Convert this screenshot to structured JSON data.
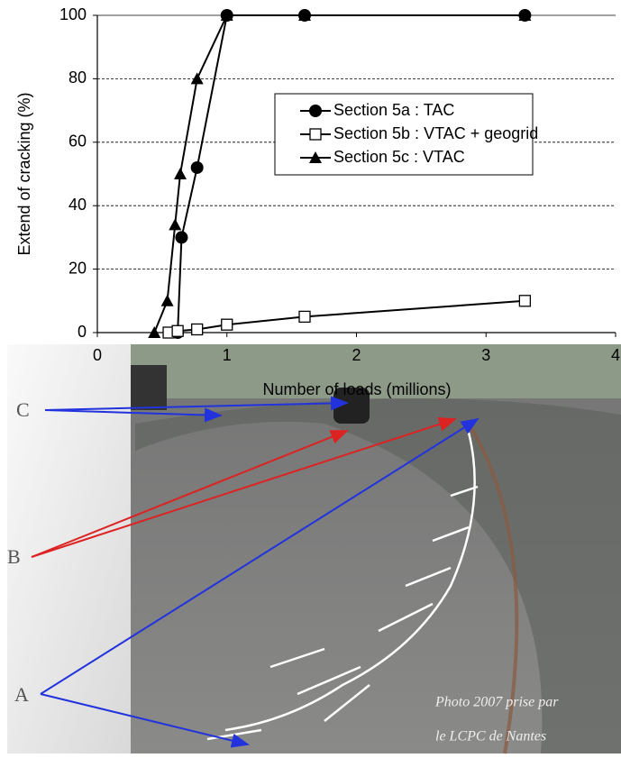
{
  "chart_data": {
    "type": "line",
    "xlabel": "Number of loads (millions)",
    "ylabel": "Extend of cracking (%)",
    "xlim": [
      0,
      4
    ],
    "xticks": [
      0,
      1,
      2,
      3,
      4
    ],
    "ylim": [
      0,
      100
    ],
    "yticks": [
      0,
      20,
      40,
      60,
      80,
      100
    ],
    "grid": true,
    "legend": "upper right",
    "series": [
      {
        "name": "Section 5a : TAC",
        "color": "#000000",
        "marker": "circle",
        "x": [
          0.62,
          0.65,
          0.77,
          1.0,
          1.6,
          3.3
        ],
        "values": [
          0,
          30,
          52,
          100,
          100,
          100
        ]
      },
      {
        "name": "Section 5b : VTAC + geogrid",
        "color": "#000000",
        "marker": "square",
        "x": [
          0.55,
          0.62,
          0.77,
          1.0,
          1.6,
          3.3
        ],
        "values": [
          0,
          0.5,
          1,
          2.5,
          5,
          10
        ]
      },
      {
        "name": "Section 5c : VTAC",
        "color": "#000000",
        "marker": "triangle",
        "x": [
          0.44,
          0.54,
          0.6,
          0.64,
          0.77,
          1.0,
          1.6,
          3.3
        ],
        "values": [
          0,
          10,
          34,
          50,
          80,
          100,
          100,
          100
        ]
      }
    ]
  },
  "photo": {
    "labels": [
      "C",
      "B",
      "A"
    ],
    "caption": [
      "Photo 2007 prise par",
      "le LCPC de Nantes"
    ]
  }
}
